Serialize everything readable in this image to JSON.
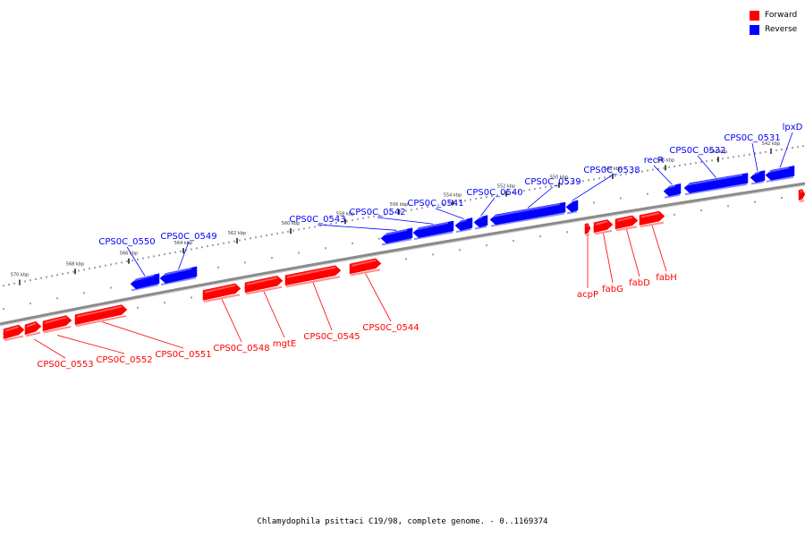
{
  "caption": "Chlamydophila psittaci C19/98, complete genome. - 0..1169374",
  "colors": {
    "forward": "#ff0000",
    "reverse": "#0000ff",
    "backbone": "#808080"
  },
  "legend": [
    {
      "label": "Forward",
      "color": "#ff0000"
    },
    {
      "label": "Reverse",
      "color": "#0000ff"
    }
  ],
  "ticks": [
    "570 kbp",
    "568 kbp",
    "566 kbp",
    "564 kbp",
    "562 kbp",
    "560 kbp",
    "558 kbp",
    "556 kbp",
    "554 kbp",
    "552 kbp",
    "550 kbp",
    "548 kbp",
    "546 kbp",
    "544 kbp",
    "542 kbp"
  ],
  "reverse_genes": [
    {
      "label": "CPS0C_0550"
    },
    {
      "label": "CPS0C_0549"
    },
    {
      "label": "CPS0C_0543"
    },
    {
      "label": "CPS0C_0542"
    },
    {
      "label": "CPS0C_0541"
    },
    {
      "label": "CPS0C_0540"
    },
    {
      "label": "CPS0C_0539"
    },
    {
      "label": "CPS0C_0538"
    },
    {
      "label": "recR"
    },
    {
      "label": "CPS0C_0532"
    },
    {
      "label": "CPS0C_0531"
    },
    {
      "label": "lpxD"
    }
  ],
  "forward_genes": [
    {
      "label": "CPS0C_0553"
    },
    {
      "label": "CPS0C_0552"
    },
    {
      "label": "CPS0C_0551"
    },
    {
      "label": "CPS0C_0548"
    },
    {
      "label": "mgtE"
    },
    {
      "label": "CPS0C_0545"
    },
    {
      "label": "CPS0C_0544"
    },
    {
      "label": "acpP"
    },
    {
      "label": "fabG"
    },
    {
      "label": "fabD"
    },
    {
      "label": "fabH"
    }
  ]
}
